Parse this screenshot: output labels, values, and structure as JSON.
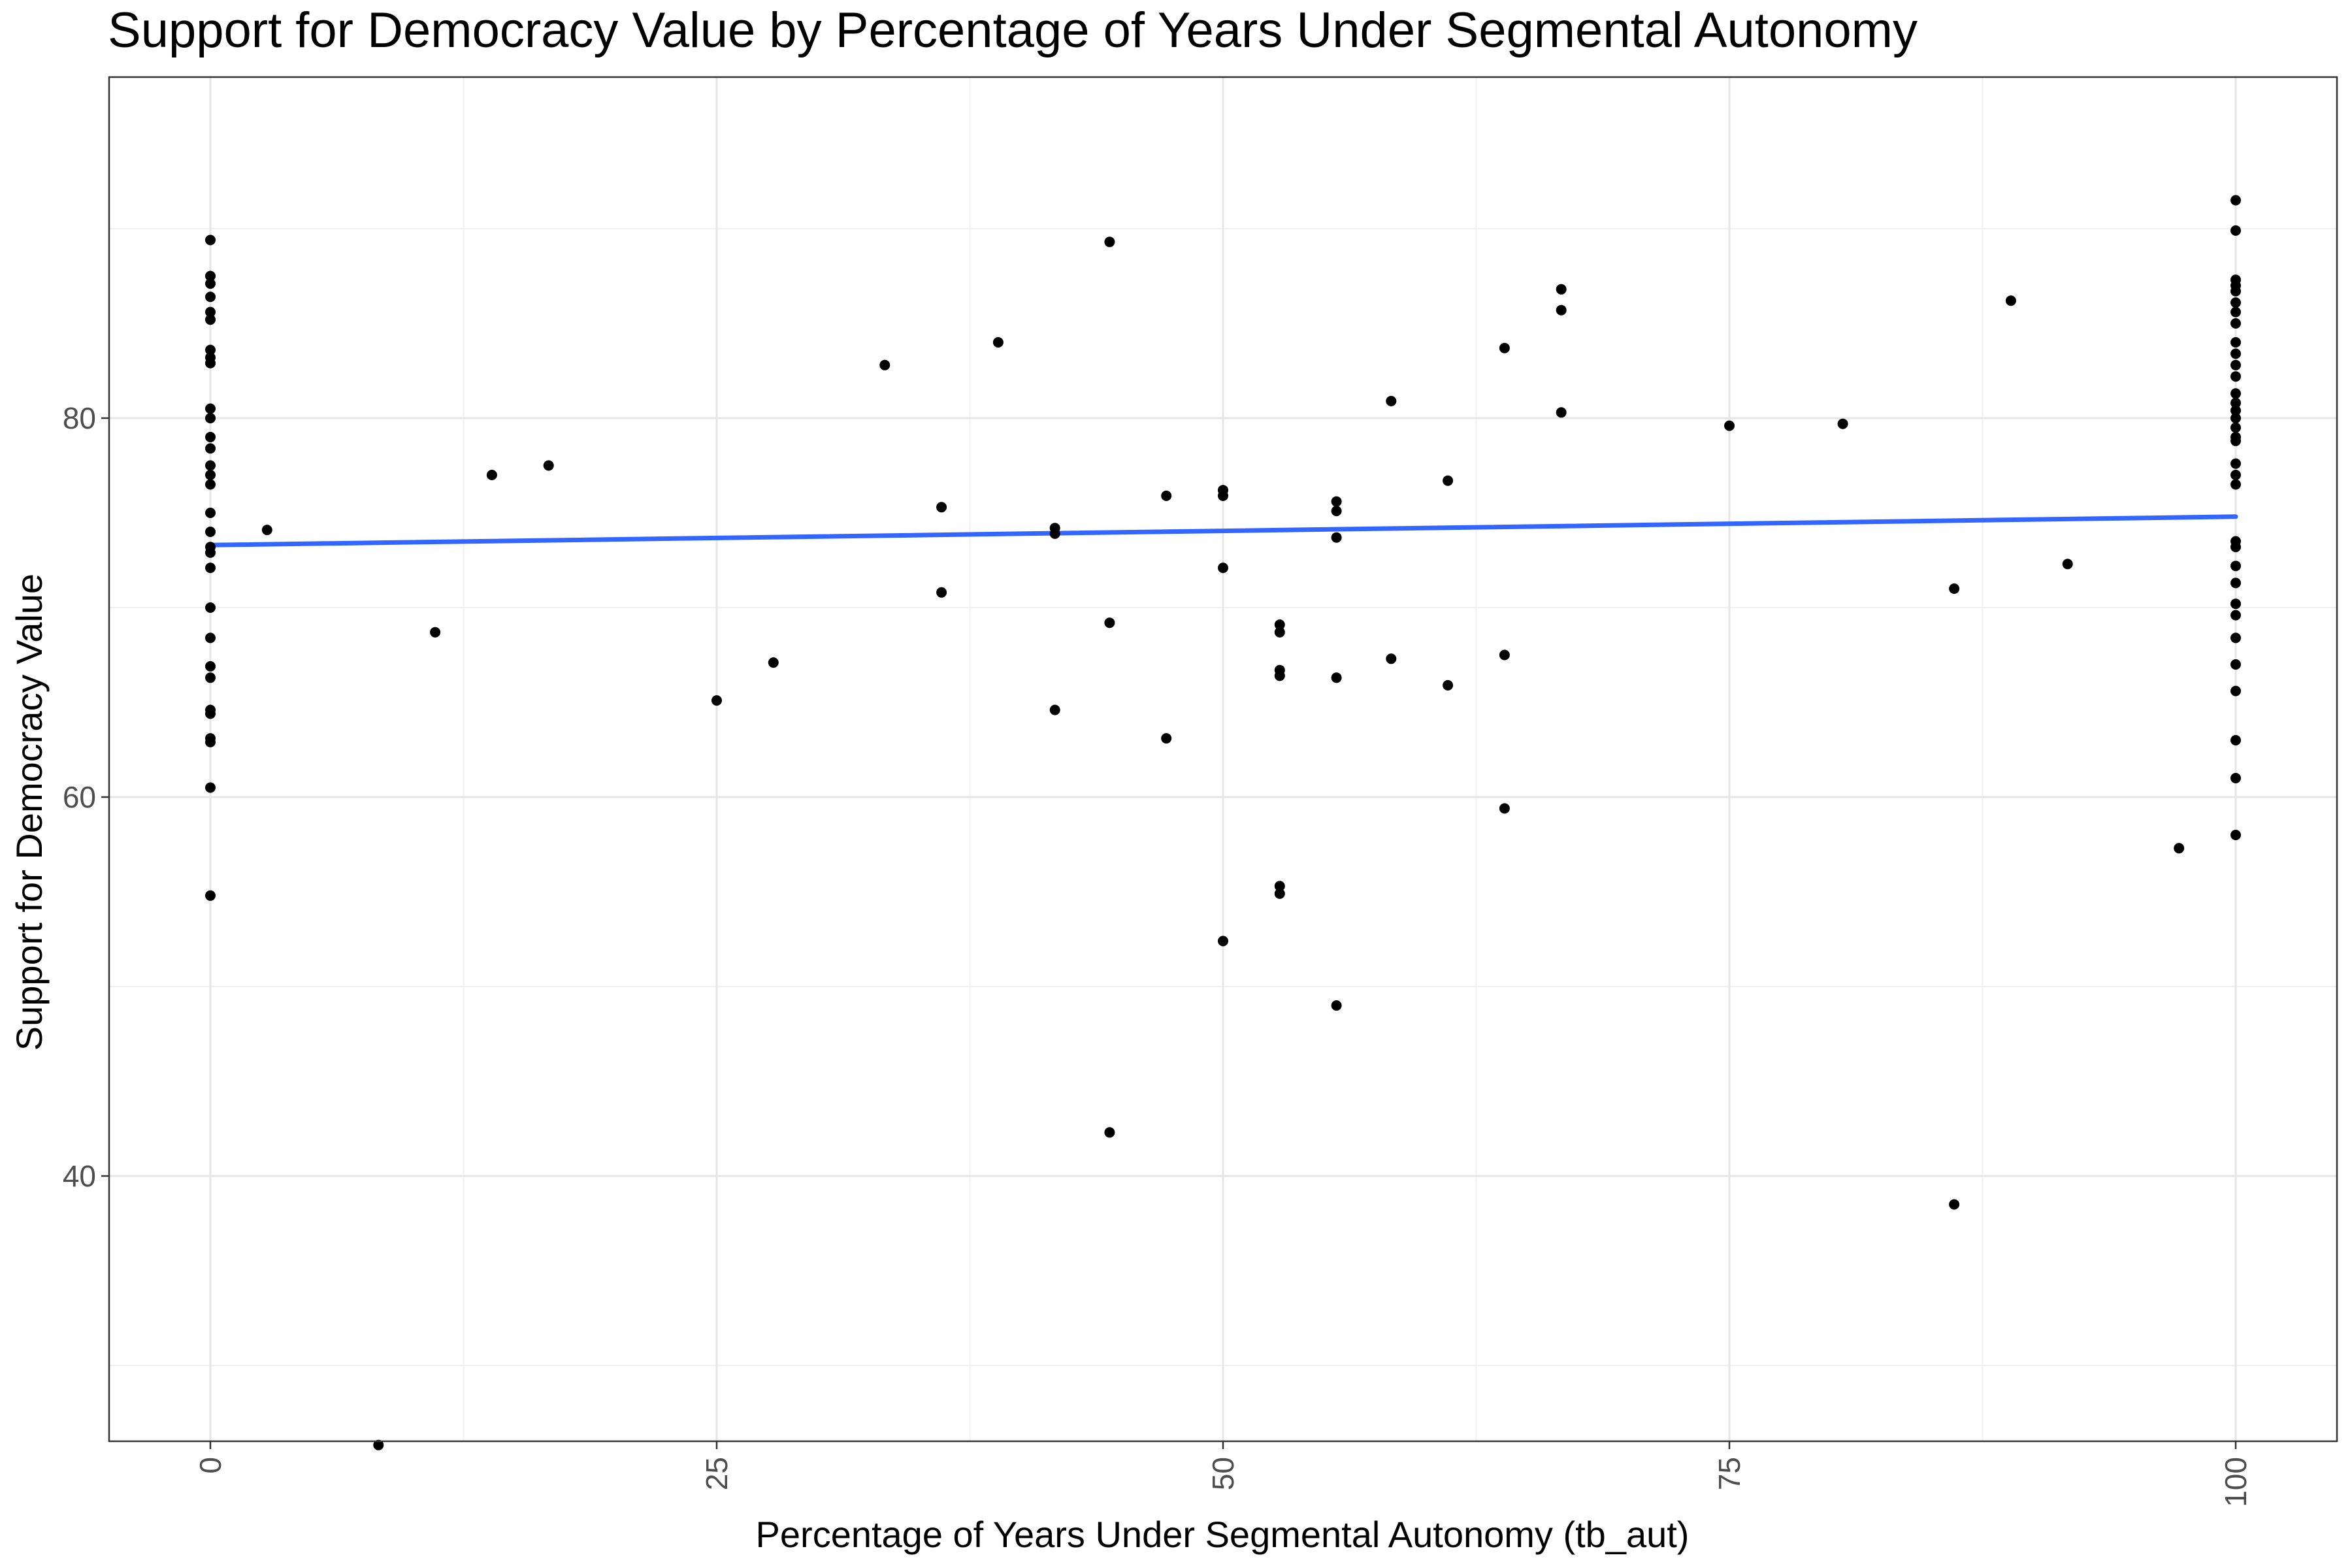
{
  "chart_data": {
    "type": "scatter",
    "title": "Support for Democracy Value by Percentage of Years Under Segmental Autonomy",
    "xlabel": "Percentage of Years Under Segmental Autonomy (tb_aut)",
    "ylabel": "Support for Democracy Value",
    "xlim": [
      -5,
      105
    ],
    "ylim": [
      26,
      98
    ],
    "x_ticks": [
      0,
      25,
      50,
      75,
      100
    ],
    "x_tick_labels": [
      "0",
      "25",
      "50",
      "75",
      "100"
    ],
    "y_ticks": [
      40,
      60,
      80
    ],
    "y_tick_labels": [
      "40",
      "60",
      "80"
    ],
    "grid": true,
    "theme": "white background, light grey grid, black panel border",
    "point_color": "#000000",
    "fit_color": "#3366FF",
    "fit_line": {
      "x": [
        0,
        100
      ],
      "y": [
        73.3,
        74.8
      ]
    },
    "points": [
      [
        0,
        89.4
      ],
      [
        0,
        87.5
      ],
      [
        0,
        87.1
      ],
      [
        0,
        86.4
      ],
      [
        0,
        85.6
      ],
      [
        0,
        85.2
      ],
      [
        0,
        83.6
      ],
      [
        0,
        83.2
      ],
      [
        0,
        82.9
      ],
      [
        0,
        80.5
      ],
      [
        0,
        80.0
      ],
      [
        0,
        79.0
      ],
      [
        0,
        78.4
      ],
      [
        0,
        77.5
      ],
      [
        0,
        77.0
      ],
      [
        0,
        76.5
      ],
      [
        0,
        75.0
      ],
      [
        0,
        74.0
      ],
      [
        0,
        73.2
      ],
      [
        0,
        72.9
      ],
      [
        0,
        72.1
      ],
      [
        0,
        70.0
      ],
      [
        0,
        68.4
      ],
      [
        0,
        66.9
      ],
      [
        0,
        66.3
      ],
      [
        0,
        64.6
      ],
      [
        0,
        64.4
      ],
      [
        0,
        63.1
      ],
      [
        0,
        62.9
      ],
      [
        0,
        60.5
      ],
      [
        0,
        54.8
      ],
      [
        2.8,
        74.1
      ],
      [
        8.3,
        25.8
      ],
      [
        11.1,
        68.7
      ],
      [
        13.9,
        77.0
      ],
      [
        16.7,
        77.5
      ],
      [
        25.0,
        65.1
      ],
      [
        27.8,
        67.1
      ],
      [
        33.3,
        82.8
      ],
      [
        36.1,
        75.3
      ],
      [
        36.1,
        70.8
      ],
      [
        38.9,
        84.0
      ],
      [
        41.7,
        74.2
      ],
      [
        41.7,
        73.9
      ],
      [
        41.7,
        64.6
      ],
      [
        44.4,
        89.3
      ],
      [
        44.4,
        69.2
      ],
      [
        44.4,
        42.3
      ],
      [
        47.2,
        75.9
      ],
      [
        47.2,
        63.1
      ],
      [
        50.0,
        76.2
      ],
      [
        50.0,
        75.9
      ],
      [
        50.0,
        72.1
      ],
      [
        50.0,
        52.4
      ],
      [
        52.8,
        69.1
      ],
      [
        52.8,
        68.7
      ],
      [
        52.8,
        66.7
      ],
      [
        52.8,
        66.4
      ],
      [
        52.8,
        55.3
      ],
      [
        52.8,
        54.9
      ],
      [
        55.6,
        75.6
      ],
      [
        55.6,
        75.1
      ],
      [
        55.6,
        73.7
      ],
      [
        55.6,
        66.3
      ],
      [
        55.6,
        49.0
      ],
      [
        58.3,
        80.9
      ],
      [
        58.3,
        67.3
      ],
      [
        61.1,
        76.7
      ],
      [
        61.1,
        65.9
      ],
      [
        63.9,
        83.7
      ],
      [
        63.9,
        67.5
      ],
      [
        63.9,
        59.4
      ],
      [
        66.7,
        86.8
      ],
      [
        66.7,
        85.7
      ],
      [
        66.7,
        80.3
      ],
      [
        75.0,
        79.6
      ],
      [
        80.6,
        79.7
      ],
      [
        86.1,
        71.0
      ],
      [
        86.1,
        38.5
      ],
      [
        88.9,
        86.2
      ],
      [
        91.7,
        72.3
      ],
      [
        97.2,
        57.3
      ],
      [
        100,
        91.5
      ],
      [
        100,
        89.9
      ],
      [
        100,
        87.3
      ],
      [
        100,
        87.0
      ],
      [
        100,
        86.7
      ],
      [
        100,
        86.1
      ],
      [
        100,
        85.6
      ],
      [
        100,
        85.0
      ],
      [
        100,
        84.0
      ],
      [
        100,
        83.4
      ],
      [
        100,
        82.8
      ],
      [
        100,
        82.2
      ],
      [
        100,
        81.3
      ],
      [
        100,
        80.8
      ],
      [
        100,
        80.4
      ],
      [
        100,
        80.0
      ],
      [
        100,
        79.5
      ],
      [
        100,
        79.0
      ],
      [
        100,
        78.8
      ],
      [
        100,
        77.6
      ],
      [
        100,
        77.0
      ],
      [
        100,
        76.5
      ],
      [
        100,
        73.5
      ],
      [
        100,
        73.2
      ],
      [
        100,
        72.2
      ],
      [
        100,
        71.3
      ],
      [
        100,
        70.2
      ],
      [
        100,
        69.6
      ],
      [
        100,
        68.4
      ],
      [
        100,
        67.0
      ],
      [
        100,
        65.6
      ],
      [
        100,
        63.0
      ],
      [
        100,
        61.0
      ],
      [
        100,
        58.0
      ]
    ]
  }
}
